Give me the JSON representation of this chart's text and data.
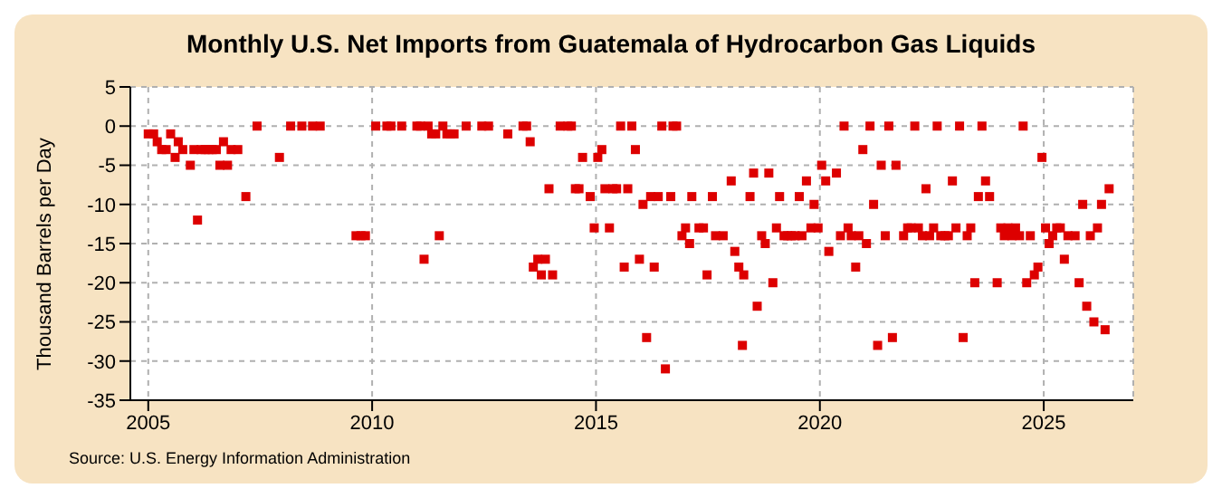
{
  "chart_data": {
    "type": "scatter",
    "title": "Monthly U.S. Net Imports from Guatemala of Hydrocarbon Gas Liquids",
    "ylabel": "Thousand Barrels per Day",
    "annotations": [
      "Source: U.S. Energy Information Administration"
    ],
    "x": [
      2005.0,
      2005.12,
      2005.2,
      2005.3,
      2005.4,
      2005.5,
      2005.6,
      2005.67,
      2005.77,
      2005.94,
      2006.02,
      2006.1,
      2006.18,
      2006.27,
      2006.35,
      2006.43,
      2006.52,
      2006.6,
      2006.68,
      2006.77,
      2006.85,
      2007.0,
      2007.18,
      2007.43,
      2007.93,
      2008.18,
      2008.43,
      2008.67,
      2008.84,
      2009.64,
      2009.75,
      2009.85,
      2010.08,
      2010.33,
      2010.42,
      2010.66,
      2011.0,
      2011.08,
      2011.16,
      2011.25,
      2011.33,
      2011.42,
      2011.5,
      2011.58,
      2011.67,
      2011.75,
      2011.83,
      2012.1,
      2012.45,
      2012.6,
      2013.03,
      2013.37,
      2013.45,
      2013.53,
      2013.6,
      2013.7,
      2013.78,
      2013.87,
      2013.95,
      2014.03,
      2014.2,
      2014.37,
      2014.45,
      2014.54,
      2014.62,
      2014.7,
      2014.87,
      2014.96,
      2015.04,
      2015.13,
      2015.2,
      2015.3,
      2015.38,
      2015.46,
      2015.55,
      2015.63,
      2015.71,
      2015.8,
      2015.88,
      2015.97,
      2016.05,
      2016.13,
      2016.22,
      2016.3,
      2016.39,
      2016.47,
      2016.55,
      2016.67,
      2016.72,
      2016.8,
      2016.92,
      2017.0,
      2017.09,
      2017.14,
      2017.3,
      2017.4,
      2017.48,
      2017.6,
      2017.67,
      2017.84,
      2018.02,
      2018.1,
      2018.19,
      2018.27,
      2018.3,
      2018.44,
      2018.52,
      2018.6,
      2018.7,
      2018.78,
      2018.86,
      2018.95,
      2019.03,
      2019.1,
      2019.2,
      2019.28,
      2019.36,
      2019.45,
      2019.54,
      2019.6,
      2019.7,
      2019.8,
      2019.87,
      2019.96,
      2020.04,
      2020.13,
      2020.2,
      2020.37,
      2020.46,
      2020.54,
      2020.63,
      2020.7,
      2020.8,
      2020.87,
      2020.96,
      2021.04,
      2021.12,
      2021.2,
      2021.29,
      2021.37,
      2021.46,
      2021.54,
      2021.62,
      2021.7,
      2021.87,
      2021.96,
      2022.04,
      2022.12,
      2022.2,
      2022.29,
      2022.37,
      2022.45,
      2022.54,
      2022.62,
      2022.7,
      2022.79,
      2022.87,
      2022.96,
      2023.04,
      2023.12,
      2023.2,
      2023.29,
      2023.37,
      2023.46,
      2023.54,
      2023.62,
      2023.7,
      2023.79,
      2023.96,
      2024.04,
      2024.12,
      2024.2,
      2024.29,
      2024.37,
      2024.46,
      2024.54,
      2024.62,
      2024.7,
      2024.79,
      2024.87,
      2024.96,
      2025.04,
      2025.12,
      2025.2,
      2025.29,
      2025.37,
      2025.46,
      2025.54,
      2025.7,
      2025.79,
      2025.87,
      2025.96,
      2026.04,
      2026.12,
      2026.2,
      2026.29,
      2026.37,
      2026.46
    ],
    "series": [
      {
        "color": "#dd0000",
        "values": [
          -1,
          -1,
          -2,
          -3,
          -3,
          -1,
          -4,
          -2,
          -3,
          -5,
          -3,
          -12,
          -3,
          -3,
          -3,
          -3,
          -3,
          -5,
          -2,
          -5,
          -3,
          -3,
          -9,
          0,
          -4,
          0,
          0,
          0,
          0,
          -14,
          -14,
          -14,
          0,
          0,
          0,
          0,
          0,
          0,
          -17,
          0,
          -1,
          -1,
          -14,
          0,
          -1,
          -1,
          -1,
          0,
          0,
          0,
          -1,
          0,
          0,
          -2,
          -18,
          -17,
          -19,
          -17,
          -8,
          -19,
          0,
          0,
          0,
          -8,
          -8,
          -4,
          -9,
          -13,
          -4,
          -3,
          -8,
          -13,
          -8,
          -8,
          0,
          -18,
          -8,
          0,
          -3,
          -17,
          -10,
          -27,
          -9,
          -18,
          -9,
          0,
          -31,
          -9,
          0,
          0,
          -14,
          -13,
          -15,
          -9,
          -13,
          -13,
          -19,
          -9,
          -14,
          -14,
          -7,
          -16,
          -18,
          -28,
          -19,
          -9,
          -6,
          -23,
          -14,
          -15,
          -6,
          -20,
          -13,
          -9,
          -14,
          -14,
          -14,
          -14,
          -9,
          -14,
          -7,
          -13,
          -10,
          -13,
          -5,
          -7,
          -16,
          -6,
          -14,
          0,
          -13,
          -14,
          -18,
          -14,
          -3,
          -15,
          0,
          -10,
          -28,
          -5,
          -14,
          0,
          -27,
          -5,
          -14,
          -13,
          -13,
          0,
          -13,
          -14,
          -8,
          -14,
          -13,
          0,
          -14,
          -14,
          -14,
          -7,
          -13,
          0,
          -27,
          -14,
          -13,
          -20,
          -9,
          0,
          -7,
          -9,
          -20,
          -13,
          -14,
          -13,
          -14,
          -13,
          -14,
          0,
          -20,
          -14,
          -19,
          -18,
          -4,
          -13,
          -15,
          -14,
          -13,
          -13,
          -17,
          -14,
          -14,
          -20,
          -10,
          -23,
          -14,
          -25,
          -13,
          -10,
          -26,
          -8
        ]
      }
    ],
    "xlim": [
      2004.6,
      2027
    ],
    "xticks": [
      2005,
      2010,
      2015,
      2020,
      2025
    ],
    "ylim": [
      -35,
      5
    ],
    "yticks": [
      -35,
      -30,
      -25,
      -20,
      -15,
      -10,
      -5,
      0,
      5
    ],
    "grid": true,
    "marker": "square",
    "legend": false
  }
}
